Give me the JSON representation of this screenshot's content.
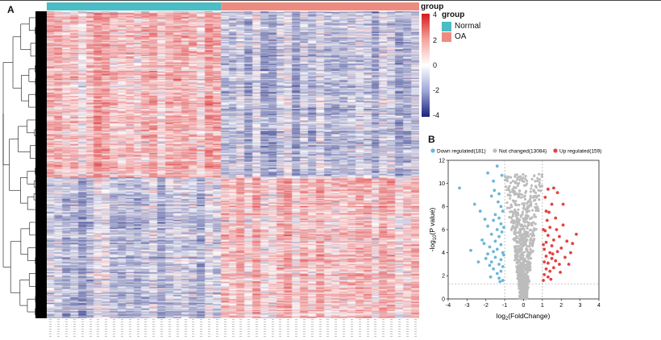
{
  "panels": {
    "a": "A",
    "b": "B"
  },
  "heatmap": {
    "legend_title": "group",
    "groups": [
      {
        "name": "Normal",
        "color": "#4bbdc4",
        "n_samples": 22
      },
      {
        "name": "OA",
        "color": "#ee8b80",
        "n_samples": 25
      }
    ],
    "colorbar": {
      "title": "group",
      "min": -4,
      "max": 4,
      "ticks": [
        "4",
        "2",
        "0",
        "-2",
        "-4"
      ],
      "colors": [
        "#1a237e",
        "#ffffff",
        "#d7191c"
      ]
    }
  },
  "chart_data": [
    {
      "type": "heatmap",
      "rows": 340,
      "columns": 47,
      "groups": [
        "Normal",
        "OA"
      ],
      "group_sizes": [
        22,
        25
      ],
      "value_range": [
        -4,
        4
      ],
      "row_clusters": [
        {
          "rows_fraction": 0.54,
          "Normal": "high",
          "OA": "low"
        },
        {
          "rows_fraction": 0.46,
          "Normal": "low",
          "OA": "high"
        }
      ]
    },
    {
      "type": "scatter",
      "xlabel_base": "log",
      "xlabel_sub": "2",
      "xlabel_rest": "(FoldChange)",
      "ylabel_pre": "-log",
      "ylabel_sub": "10",
      "ylabel_rest": "(P value)",
      "xlim": [
        -4,
        4
      ],
      "ylim": [
        0,
        12
      ],
      "xticks": [
        "-4",
        "-3",
        "-2",
        "-1",
        "0",
        "1",
        "2",
        "3",
        "4"
      ],
      "yticks": [
        "0",
        "2",
        "4",
        "6",
        "8",
        "10",
        "12"
      ],
      "thresholds": {
        "x": [
          -1,
          1
        ],
        "y": 1.3
      },
      "legend_position": "top",
      "series": [
        {
          "name": "Down regulated(181)",
          "color": "#6cb6d8",
          "points": [
            [
              -3.4,
              9.6
            ],
            [
              -2.6,
              8.2
            ],
            [
              -2.3,
              7.6
            ],
            [
              -2.2,
              5.1
            ],
            [
              -2.1,
              4.8
            ],
            [
              -2.0,
              3.5
            ],
            [
              -1.9,
              6.3
            ],
            [
              -1.9,
              3.9
            ],
            [
              -1.8,
              4.5
            ],
            [
              -1.8,
              2.9
            ],
            [
              -1.7,
              8.9
            ],
            [
              -1.7,
              5.6
            ],
            [
              -1.7,
              3.2
            ],
            [
              -1.6,
              10.2
            ],
            [
              -1.6,
              6.8
            ],
            [
              -1.6,
              4.1
            ],
            [
              -1.6,
              2.6
            ],
            [
              -1.5,
              7.3
            ],
            [
              -1.5,
              5.0
            ],
            [
              -1.5,
              3.6
            ],
            [
              -1.4,
              11.5
            ],
            [
              -1.4,
              6.0
            ],
            [
              -1.4,
              4.3
            ],
            [
              -1.4,
              2.2
            ],
            [
              -1.3,
              9.1
            ],
            [
              -1.3,
              7.0
            ],
            [
              -1.3,
              5.4
            ],
            [
              -1.3,
              3.0
            ],
            [
              -1.3,
              1.8
            ],
            [
              -1.2,
              8.0
            ],
            [
              -1.2,
              6.5
            ],
            [
              -1.2,
              4.7
            ],
            [
              -1.2,
              3.4
            ],
            [
              -1.2,
              2.4
            ],
            [
              -1.15,
              10.7
            ],
            [
              -1.15,
              5.8
            ],
            [
              -1.1,
              7.6
            ],
            [
              -1.1,
              4.0
            ],
            [
              -1.1,
              2.8
            ],
            [
              -1.1,
              1.6
            ],
            [
              -1.05,
              6.2
            ],
            [
              -1.05,
              3.8
            ],
            [
              -1.9,
              10.9
            ],
            [
              -2.4,
              3.2
            ],
            [
              -1.75,
              1.9
            ],
            [
              -2.8,
              4.2
            ],
            [
              -1.55,
              9.4
            ],
            [
              -1.35,
              8.4
            ],
            [
              -1.25,
              1.5
            ],
            [
              -2.05,
              6.9
            ]
          ]
        },
        {
          "name": "Not changed(13084)",
          "color": "#bcbcbc",
          "points": []
        },
        {
          "name": "Up regulated(159)",
          "color": "#e64040",
          "points": [
            [
              2.8,
              5.6
            ],
            [
              2.5,
              4.0
            ],
            [
              2.3,
              5.0
            ],
            [
              2.2,
              3.6
            ],
            [
              2.1,
              6.4
            ],
            [
              2.0,
              4.4
            ],
            [
              1.9,
              5.4
            ],
            [
              1.9,
              3.0
            ],
            [
              1.8,
              9.2
            ],
            [
              1.8,
              4.1
            ],
            [
              1.7,
              7.0
            ],
            [
              1.7,
              3.3
            ],
            [
              1.6,
              5.1
            ],
            [
              1.6,
              2.7
            ],
            [
              1.5,
              8.2
            ],
            [
              1.5,
              4.6
            ],
            [
              1.5,
              3.5
            ],
            [
              1.4,
              6.2
            ],
            [
              1.4,
              4.0
            ],
            [
              1.4,
              2.4
            ],
            [
              1.35,
              7.5
            ],
            [
              1.3,
              5.5
            ],
            [
              1.3,
              3.1
            ],
            [
              1.3,
              1.9
            ],
            [
              1.25,
              6.8
            ],
            [
              1.2,
              4.9
            ],
            [
              1.2,
              3.7
            ],
            [
              1.2,
              2.6
            ],
            [
              1.15,
              8.8
            ],
            [
              1.15,
              5.9
            ],
            [
              1.1,
              4.3
            ],
            [
              1.1,
              3.2
            ],
            [
              1.1,
              2.1
            ],
            [
              1.05,
              6.0
            ],
            [
              1.05,
              4.7
            ],
            [
              1.05,
              1.6
            ],
            [
              2.1,
              8.2
            ],
            [
              1.6,
              9.6
            ],
            [
              2.4,
              3.0
            ],
            [
              1.95,
              2.3
            ],
            [
              1.45,
              1.7
            ],
            [
              1.75,
              6.0
            ],
            [
              1.3,
              9.5
            ],
            [
              1.2,
              7.6
            ],
            [
              2.6,
              4.8
            ],
            [
              1.55,
              3.9
            ]
          ]
        }
      ]
    }
  ]
}
